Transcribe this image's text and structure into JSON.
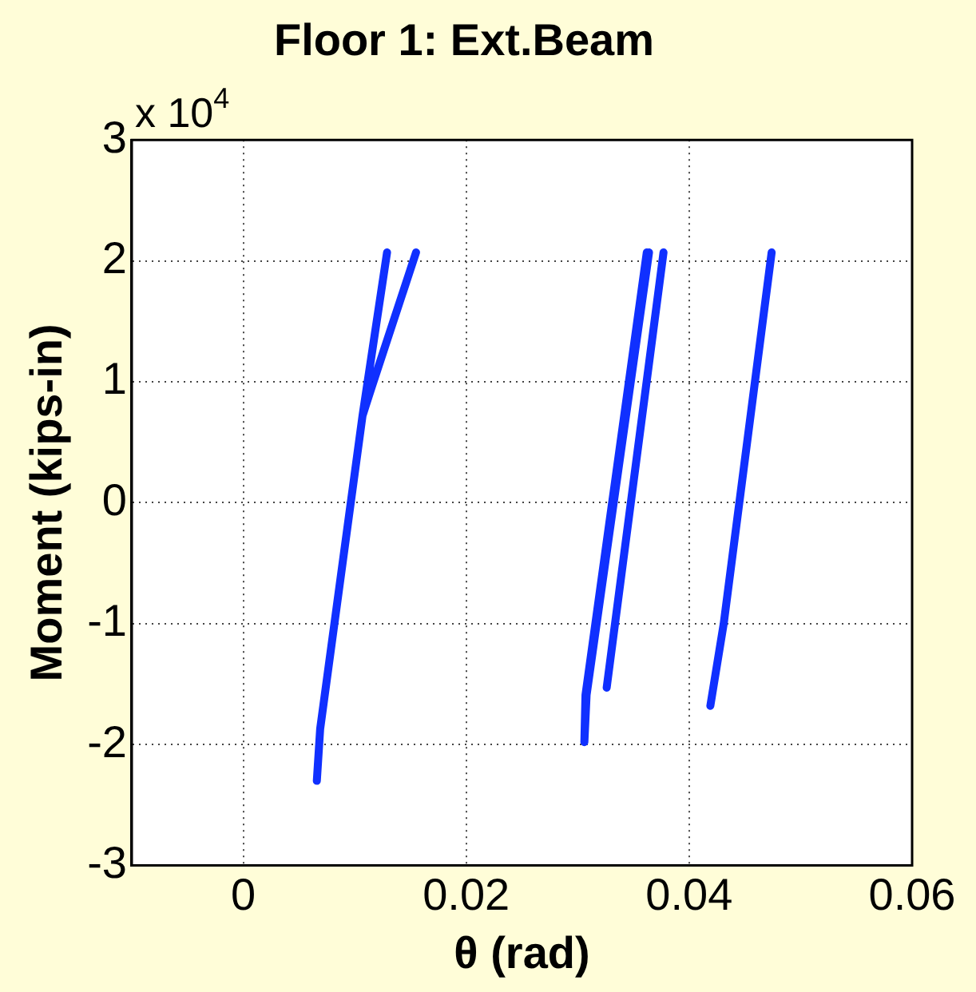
{
  "chart_data": {
    "type": "line",
    "title": "Floor 1: Ext.Beam",
    "xlabel": "θ (rad)",
    "ylabel": "Moment (kips-in)",
    "annotations": [
      "x 10$^{4}$"
    ],
    "xlim": [
      -0.01,
      0.06
    ],
    "xticks": [
      0,
      0.02,
      0.04,
      0.06
    ],
    "ylim": [
      -3,
      3
    ],
    "yticks": [
      -3,
      -2,
      -1,
      0,
      1,
      2,
      3
    ],
    "grid": true,
    "marker": "none",
    "line_style": "solid",
    "series": [
      {
        "color": "#1030ff",
        "x": [
          0.0155,
          0.0115,
          0.0107,
          0.0069,
          0.0066,
          0.0069,
          0.0107,
          0.0129
        ],
        "values": [
          2.07,
          0.95,
          0.72,
          -1.87,
          -2.3,
          -1.87,
          0.72,
          2.07
        ]
      },
      {
        "color": "#1030ff",
        "x": [
          0.0362,
          0.0307,
          0.0306,
          0.0308,
          0.0364
        ],
        "values": [
          2.07,
          -1.59,
          -1.98,
          -1.59,
          2.07
        ]
      },
      {
        "color": "#1030ff",
        "x": [
          0.0326,
          0.0377
        ],
        "values": [
          -1.53,
          2.07
        ]
      },
      {
        "color": "#1030ff",
        "x": [
          0.0419,
          0.0431,
          0.0474
        ],
        "values": [
          -1.68,
          -1.0,
          2.07
        ]
      }
    ]
  }
}
